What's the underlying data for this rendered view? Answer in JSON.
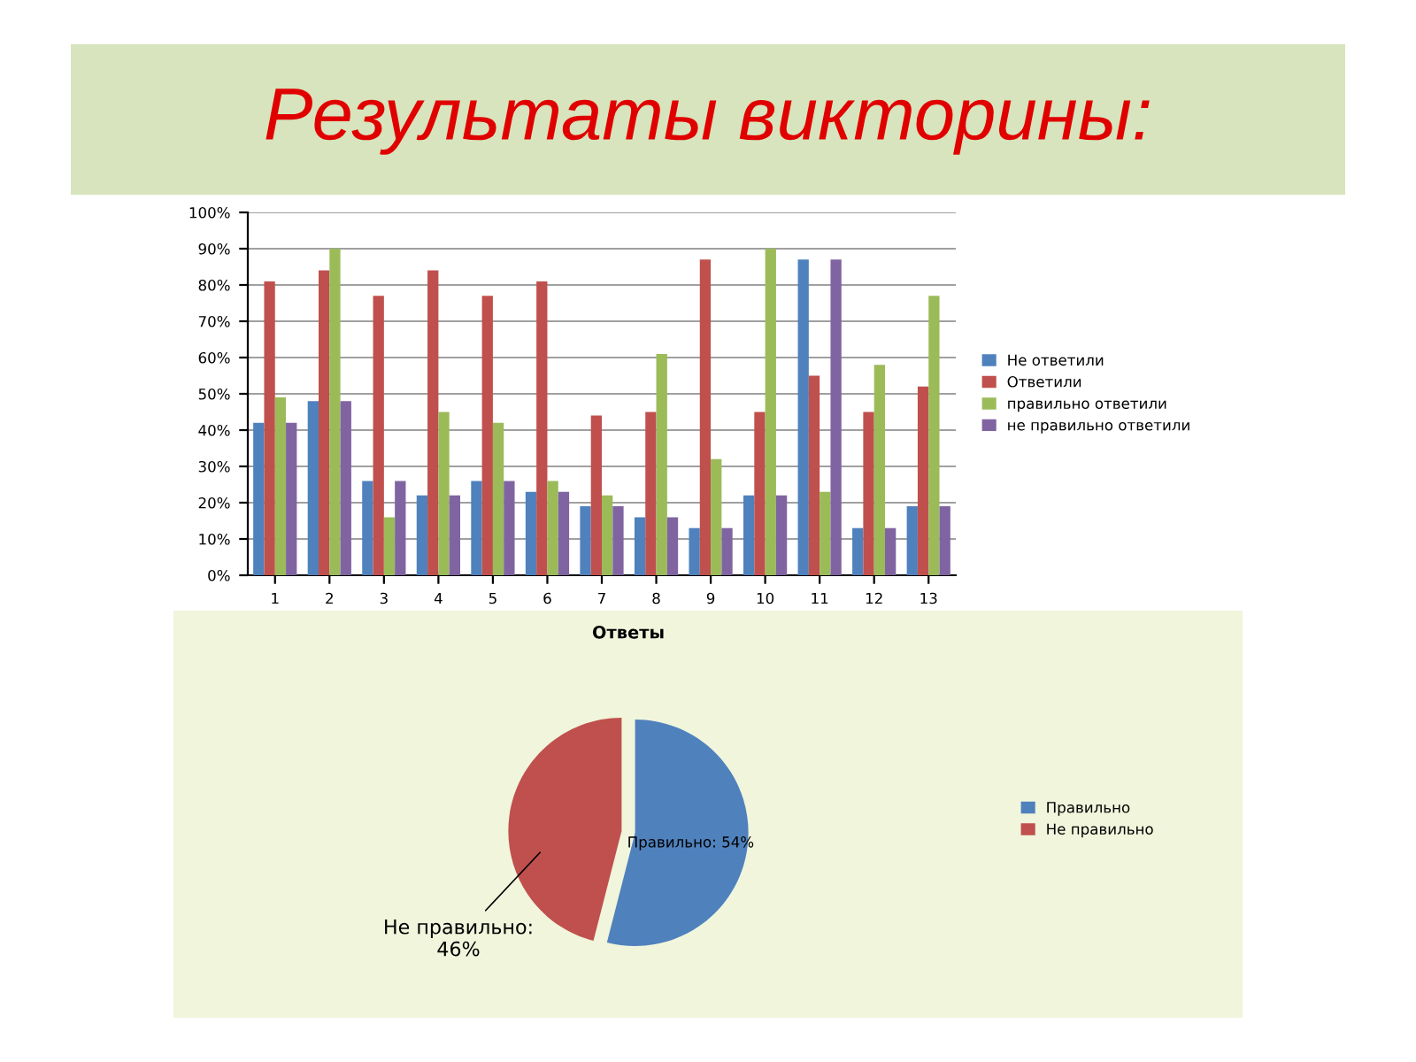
{
  "chart_data": [
    {
      "type": "bar",
      "title": "Результаты викторины:",
      "categories": [
        "1",
        "2",
        "3",
        "4",
        "5",
        "6",
        "7",
        "8",
        "9",
        "10",
        "11",
        "12",
        "13"
      ],
      "series": [
        {
          "name": "Не ответили",
          "color": "#4f81bd",
          "values": [
            42,
            48,
            26,
            22,
            26,
            23,
            19,
            16,
            13,
            22,
            87,
            13,
            19
          ]
        },
        {
          "name": "Ответили",
          "color": "#c0504d",
          "values": [
            81,
            84,
            77,
            84,
            77,
            81,
            44,
            45,
            87,
            45,
            55,
            45,
            52
          ]
        },
        {
          "name": "правильно ответили",
          "color": "#9bbb59",
          "values": [
            49,
            90,
            16,
            45,
            42,
            26,
            22,
            61,
            32,
            90,
            23,
            58,
            77
          ]
        },
        {
          "name": "не правильно ответили",
          "color": "#8064a2",
          "values": [
            42,
            48,
            26,
            22,
            26,
            23,
            19,
            16,
            13,
            22,
            87,
            13,
            19
          ]
        }
      ],
      "ylim": [
        0,
        100
      ],
      "yticks": [
        {
          "value": 0,
          "label": "0%"
        },
        {
          "value": 10,
          "label": "10%"
        },
        {
          "value": 20,
          "label": "20%"
        },
        {
          "value": 30,
          "label": "30%"
        },
        {
          "value": 40,
          "label": "40%"
        },
        {
          "value": 50,
          "label": "50%"
        },
        {
          "value": 60,
          "label": "60%"
        },
        {
          "value": 70,
          "label": "70%"
        },
        {
          "value": 80,
          "label": "80%"
        },
        {
          "value": 90,
          "label": "90%"
        },
        {
          "value": 100,
          "label": "100%"
        }
      ],
      "grid": "y",
      "legend": "right"
    },
    {
      "type": "pie",
      "title": "Ответы",
      "categories": [
        "Правильно",
        "Не правильно"
      ],
      "values": [
        54,
        46
      ],
      "colors": [
        "#4f81bd",
        "#c0504d"
      ],
      "value_labels": [
        "Правильно: 54%",
        "Не правильно:\n46%"
      ],
      "legend": "right"
    }
  ]
}
